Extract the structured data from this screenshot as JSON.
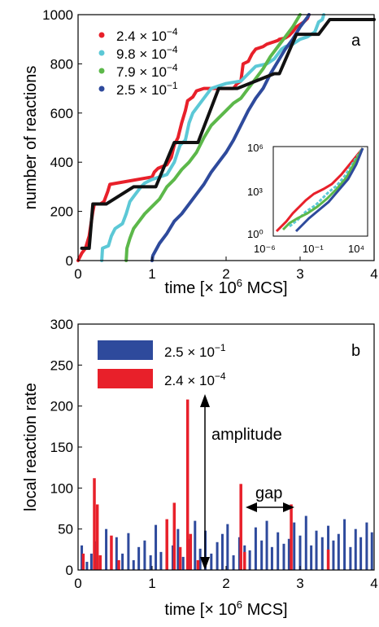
{
  "chart_data": [
    {
      "type": "line",
      "panel": "a",
      "xlabel": "time [× 10⁶ MCS]",
      "ylabel": "number of reactions",
      "xlim": [
        0,
        4
      ],
      "ylim": [
        0,
        1000
      ],
      "xticks": [
        "0",
        "1",
        "2",
        "3",
        "4"
      ],
      "yticks": [
        "0",
        "200",
        "400",
        "600",
        "800",
        "1000"
      ],
      "legend_position": "top-left",
      "grid": false,
      "series": [
        {
          "name": "2.4 × 10⁻⁴",
          "color": "#e8202a",
          "x": [
            0.0,
            0.05,
            0.1,
            0.15,
            0.2,
            0.22,
            0.3,
            0.35,
            0.4,
            0.43,
            1.0,
            1.03,
            1.08,
            1.12,
            1.2,
            1.26,
            1.3,
            1.35,
            1.4,
            1.45,
            1.48,
            1.55,
            1.6,
            1.7,
            1.8,
            1.85,
            2.1,
            2.15,
            2.2,
            2.23,
            2.3,
            2.35,
            2.4,
            2.5,
            2.55,
            2.6,
            2.65,
            2.7,
            2.72,
            2.8,
            2.85,
            2.9,
            2.95,
            3.0,
            3.05,
            3.1,
            3.12
          ],
          "y": [
            0,
            30,
            50,
            100,
            200,
            230,
            230,
            240,
            280,
            310,
            340,
            360,
            375,
            380,
            390,
            420,
            470,
            500,
            560,
            610,
            650,
            665,
            690,
            700,
            700,
            700,
            700,
            720,
            730,
            800,
            810,
            840,
            860,
            870,
            880,
            885,
            890,
            895,
            900,
            905,
            915,
            930,
            950,
            960,
            970,
            985,
            1000
          ]
        },
        {
          "name": "9.8 × 10⁻⁴",
          "color": "#5cc8d6",
          "x": [
            0.32,
            0.33,
            0.37,
            0.41,
            0.45,
            0.5,
            0.55,
            0.6,
            0.65,
            0.7,
            0.75,
            0.8,
            0.85,
            0.9,
            1.0,
            1.1,
            1.2,
            1.3,
            1.35,
            1.38,
            1.45,
            1.5,
            1.55,
            1.6,
            1.65,
            1.7,
            1.8,
            1.9,
            2.0,
            2.2,
            2.3,
            2.4,
            2.55,
            2.65,
            2.7,
            2.75,
            2.8,
            2.9,
            3.0,
            3.1,
            3.15,
            3.2,
            3.25,
            3.3,
            3.32
          ],
          "y": [
            0,
            50,
            55,
            60,
            100,
            130,
            140,
            150,
            190,
            240,
            260,
            280,
            300,
            315,
            330,
            340,
            350,
            400,
            445,
            470,
            490,
            560,
            600,
            620,
            640,
            660,
            700,
            710,
            720,
            730,
            760,
            790,
            800,
            820,
            840,
            860,
            870,
            880,
            900,
            910,
            920,
            930,
            970,
            980,
            1000
          ]
        },
        {
          "name": "7.9 × 10⁻⁴",
          "color": "#5cb84a",
          "x": [
            0.65,
            0.66,
            0.7,
            0.75,
            0.8,
            0.9,
            1.0,
            1.1,
            1.2,
            1.3,
            1.4,
            1.5,
            1.6,
            1.7,
            1.8,
            1.9,
            2.0,
            2.1,
            2.2,
            2.3,
            2.4,
            2.5,
            2.6,
            2.7,
            2.8,
            2.9,
            3.0
          ],
          "y": [
            0,
            50,
            90,
            130,
            150,
            190,
            220,
            250,
            300,
            330,
            370,
            400,
            440,
            500,
            550,
            580,
            610,
            640,
            660,
            700,
            740,
            780,
            830,
            870,
            910,
            950,
            1000
          ]
        },
        {
          "name": "2.5 × 10⁻¹",
          "color": "#2e4a9c",
          "x": [
            1.0,
            1.01,
            1.1,
            1.2,
            1.3,
            1.4,
            1.5,
            1.6,
            1.7,
            1.8,
            1.9,
            2.0,
            2.1,
            2.2,
            2.3,
            2.4,
            2.5,
            2.6,
            2.7,
            2.8,
            2.9,
            3.0,
            3.05,
            3.1,
            3.12
          ],
          "y": [
            0,
            20,
            70,
            110,
            160,
            190,
            230,
            270,
            310,
            360,
            400,
            440,
            490,
            550,
            610,
            660,
            700,
            760,
            810,
            860,
            900,
            950,
            970,
            990,
            1000
          ]
        },
        {
          "name": "",
          "color": "#111111",
          "x": [
            0.05,
            0.15,
            0.2,
            0.38,
            0.75,
            1.05,
            1.3,
            1.62,
            1.9,
            2.15,
            2.65,
            2.72,
            2.95,
            3.25,
            3.4,
            4.0
          ],
          "y": [
            50,
            50,
            230,
            230,
            300,
            300,
            480,
            480,
            700,
            700,
            760,
            760,
            920,
            920,
            980,
            980
          ]
        }
      ],
      "inset": {
        "x_tick_labels": [
          "10⁻⁶",
          "10⁻¹",
          "10⁴"
        ],
        "y_tick_labels": [
          "10⁰",
          "10³",
          "10⁶"
        ],
        "scale": "log-log"
      },
      "panel_label": "a"
    },
    {
      "type": "bar",
      "panel": "b",
      "xlabel": "time [× 10⁶ MCS]",
      "ylabel": "local reaction rate",
      "xlim": [
        0,
        4
      ],
      "ylim": [
        0,
        300
      ],
      "xticks": [
        "0",
        "1",
        "2",
        "3",
        "4"
      ],
      "yticks": [
        "0",
        "50",
        "100",
        "150",
        "200",
        "250",
        "300"
      ],
      "legend_position": "top-left",
      "grid": false,
      "series": [
        {
          "name": "2.5 × 10⁻¹",
          "color": "#2e4a9c",
          "x": [
            0.05,
            0.12,
            0.18,
            0.25,
            0.3,
            0.38,
            0.45,
            0.52,
            0.6,
            0.68,
            0.75,
            0.82,
            0.9,
            0.98,
            1.05,
            1.12,
            1.2,
            1.28,
            1.35,
            1.42,
            1.5,
            1.58,
            1.65,
            1.72,
            1.8,
            1.88,
            1.95,
            2.02,
            2.1,
            2.18,
            2.25,
            2.32,
            2.4,
            2.48,
            2.55,
            2.62,
            2.7,
            2.78,
            2.85,
            2.92,
            3.0,
            3.08,
            3.15,
            3.22,
            3.3,
            3.38,
            3.45,
            3.52,
            3.6,
            3.68,
            3.75,
            3.82,
            3.9,
            3.97
          ],
          "values": [
            30,
            10,
            20,
            35,
            15,
            50,
            25,
            40,
            20,
            45,
            12,
            28,
            36,
            18,
            55,
            22,
            42,
            30,
            50,
            16,
            38,
            60,
            26,
            48,
            20,
            34,
            44,
            56,
            18,
            40,
            30,
            24,
            52,
            36,
            60,
            28,
            46,
            32,
            38,
            58,
            42,
            66,
            30,
            48,
            40,
            54,
            36,
            44,
            62,
            28,
            50,
            40,
            58,
            46
          ]
        },
        {
          "name": "2.4 × 10⁻⁴",
          "color": "#e8202a",
          "x": [
            0.07,
            0.22,
            0.26,
            0.3,
            0.45,
            0.55,
            1.2,
            1.3,
            1.38,
            1.48,
            1.52,
            1.62,
            2.2,
            2.25,
            2.88,
            3.38
          ],
          "values": [
            20,
            112,
            80,
            18,
            42,
            12,
            62,
            82,
            28,
            208,
            44,
            12,
            105,
            22,
            80,
            25
          ]
        }
      ],
      "annotations": [
        {
          "text": "amplitude"
        },
        {
          "text": "gap"
        }
      ],
      "panel_label": "b"
    }
  ]
}
